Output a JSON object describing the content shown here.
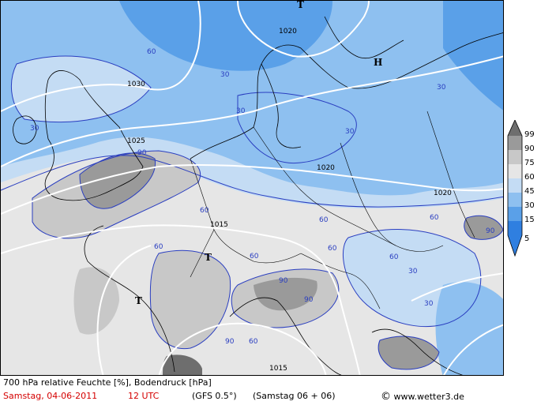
{
  "map": {
    "pressure_labels": [
      "1020",
      "1030",
      "1025",
      "1020",
      "1015",
      "1020",
      "1015"
    ],
    "humidity_labels": [
      "60",
      "30",
      "30",
      "30",
      "30",
      "90",
      "60",
      "60",
      "60",
      "60",
      "60",
      "30",
      "90",
      "90",
      "90",
      "60",
      "60",
      "30",
      "30",
      "90",
      "60"
    ],
    "highs_lows": [
      "T",
      "H",
      "T",
      "T"
    ]
  },
  "legend": {
    "levels": [
      "99",
      "90",
      "75",
      "60",
      "45",
      "30",
      "15",
      "5"
    ],
    "colors": [
      "#6e6e6e",
      "#9a9a9a",
      "#c8c8c8",
      "#e6e6e6",
      "#c4dcf4",
      "#8ec0f0",
      "#5aa0e8",
      "#2f7fe0"
    ]
  },
  "footer": {
    "title": "700 hPa relative Feuchte [%], Bodendruck [hPa]",
    "date": "Samstag, 04-06-2011",
    "time": "12 UTC",
    "model": "(GFS 0.5°)",
    "run": "(Samstag 06 + 06)",
    "copyright_symbol": "©",
    "site": "www.wetter3.de"
  }
}
